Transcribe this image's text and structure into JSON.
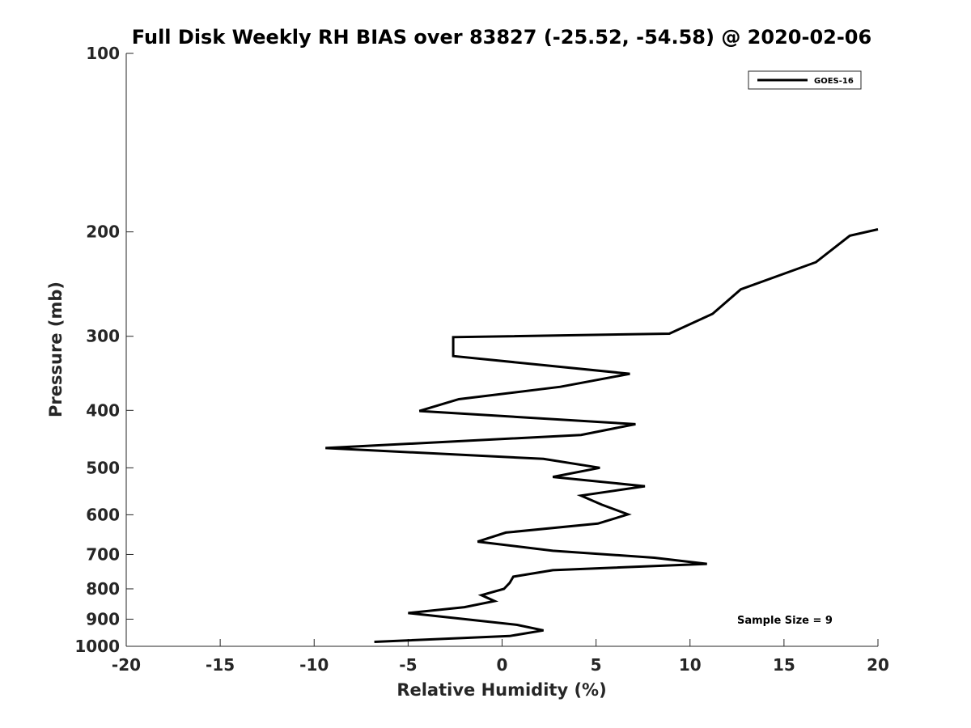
{
  "chart_data": {
    "type": "line",
    "title": "Full Disk Weekly RH BIAS over 83827 (-25.52, -54.58) @ 2020-02-06",
    "xlabel": "Relative Humidity (%)",
    "ylabel": "Pressure (mb)",
    "xlim": [
      -20,
      20
    ],
    "ylim": [
      1000,
      100
    ],
    "yscale": "log",
    "x_ticks": [
      -20,
      -15,
      -10,
      -5,
      0,
      5,
      10,
      15,
      20
    ],
    "y_ticks": [
      100,
      200,
      300,
      400,
      500,
      600,
      700,
      800,
      900,
      1000
    ],
    "grid": false,
    "legend_position": "top-right",
    "series": [
      {
        "name": "GOES-16",
        "color": "#000000",
        "points": [
          {
            "x": 20.0,
            "y": 198
          },
          {
            "x": 18.5,
            "y": 203
          },
          {
            "x": 16.7,
            "y": 225
          },
          {
            "x": 12.7,
            "y": 250
          },
          {
            "x": 11.2,
            "y": 275
          },
          {
            "x": 8.9,
            "y": 297
          },
          {
            "x": -2.6,
            "y": 301
          },
          {
            "x": -2.6,
            "y": 324
          },
          {
            "x": 6.8,
            "y": 347
          },
          {
            "x": 3.1,
            "y": 365
          },
          {
            "x": -2.3,
            "y": 383
          },
          {
            "x": -4.4,
            "y": 401
          },
          {
            "x": 7.1,
            "y": 422
          },
          {
            "x": 4.2,
            "y": 440
          },
          {
            "x": -9.4,
            "y": 463
          },
          {
            "x": 2.2,
            "y": 483
          },
          {
            "x": 5.2,
            "y": 500
          },
          {
            "x": 2.7,
            "y": 518
          },
          {
            "x": 7.6,
            "y": 537
          },
          {
            "x": 4.2,
            "y": 557
          },
          {
            "x": 5.3,
            "y": 577
          },
          {
            "x": 6.7,
            "y": 599
          },
          {
            "x": 5.1,
            "y": 621
          },
          {
            "x": 0.2,
            "y": 643
          },
          {
            "x": -1.3,
            "y": 666
          },
          {
            "x": 2.7,
            "y": 690
          },
          {
            "x": 8.1,
            "y": 709
          },
          {
            "x": 10.9,
            "y": 726
          },
          {
            "x": 2.7,
            "y": 744
          },
          {
            "x": 0.6,
            "y": 763
          },
          {
            "x": 0.4,
            "y": 782
          },
          {
            "x": 0.1,
            "y": 800
          },
          {
            "x": -1.1,
            "y": 820
          },
          {
            "x": -0.4,
            "y": 839
          },
          {
            "x": -2.0,
            "y": 859
          },
          {
            "x": -5.0,
            "y": 879
          },
          {
            "x": -2.1,
            "y": 899
          },
          {
            "x": 0.8,
            "y": 920
          },
          {
            "x": 2.2,
            "y": 940
          },
          {
            "x": 0.4,
            "y": 961
          },
          {
            "x": -6.8,
            "y": 983
          }
        ]
      }
    ],
    "annotations": [
      {
        "text": "Sample Size = 9"
      }
    ]
  }
}
